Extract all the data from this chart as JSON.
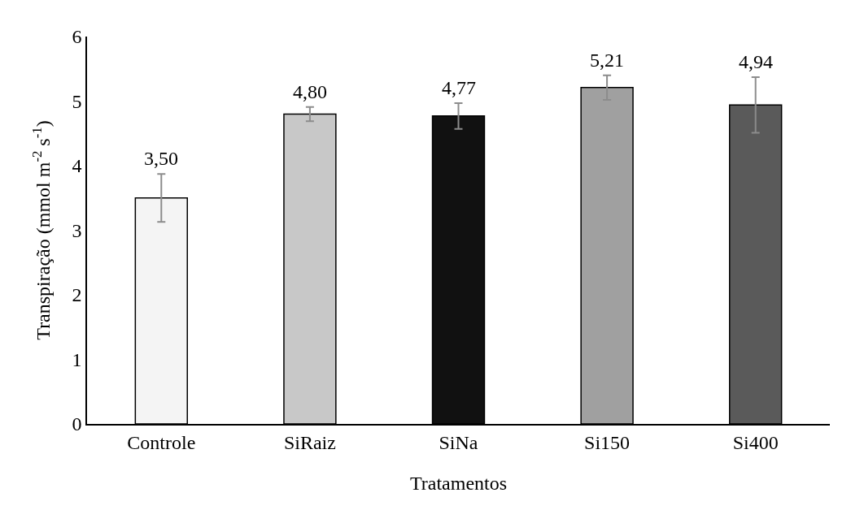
{
  "chart_data": {
    "type": "bar",
    "xlabel": "Tratamentos",
    "ylabel": "Transpiração (mmol m$^{-2}$ s$^{-1}$)",
    "categories": [
      "Controle",
      "SiRaiz",
      "SiNa",
      "Si150",
      "Si400"
    ],
    "values": [
      3.5,
      4.8,
      4.77,
      5.21,
      4.94
    ],
    "value_labels": [
      "3,50",
      "4,80",
      "4,77",
      "5,21",
      "4,94"
    ],
    "errors": [
      0.37,
      0.11,
      0.2,
      0.19,
      0.43
    ],
    "colors": [
      "#f4f4f4",
      "#c8c8c8",
      "#111111",
      "#a0a0a0",
      "#5a5a5a"
    ],
    "ylim": [
      0,
      6
    ],
    "yticks": [
      0,
      1,
      2,
      3,
      4,
      5,
      6
    ],
    "grid": false,
    "legend": false
  }
}
